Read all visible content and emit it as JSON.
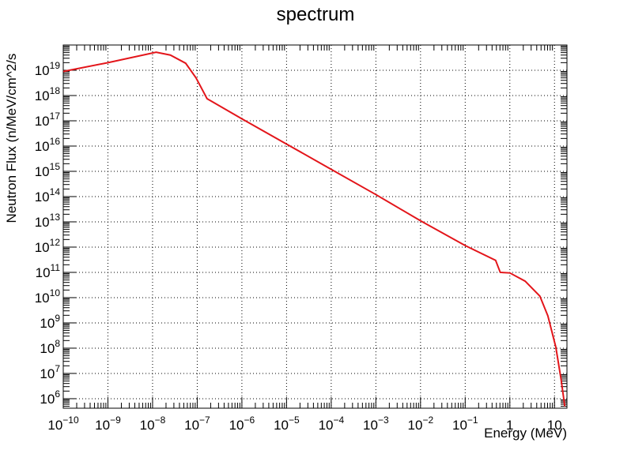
{
  "chart_data": {
    "type": "line",
    "title": "spectrum",
    "x_label": "Energy (MeV)",
    "y_label": "Neutron Flux (n/MeV/cm^2/s",
    "log_x": true,
    "log_y": true,
    "grid": true,
    "xlim": [
      1e-10,
      19
    ],
    "ylim": [
      420000,
      1e+20
    ],
    "xticks": [
      {
        "value": 1e-10,
        "label": "10^−10"
      },
      {
        "value": 1e-09,
        "label": "10^−9"
      },
      {
        "value": 1e-08,
        "label": "10^−8"
      },
      {
        "value": 1e-07,
        "label": "10^−7"
      },
      {
        "value": 1e-06,
        "label": "10^−6"
      },
      {
        "value": 1e-05,
        "label": "10^−5"
      },
      {
        "value": 0.0001,
        "label": "10^−4"
      },
      {
        "value": 0.001,
        "label": "10^−3"
      },
      {
        "value": 0.01,
        "label": "10^−2"
      },
      {
        "value": 0.1,
        "label": "10^−1"
      },
      1,
      10
    ],
    "yticks": [
      {
        "value": 1000000.0,
        "label": "10^6"
      },
      {
        "value": 10000000.0,
        "label": "10^7"
      },
      {
        "value": 100000000.0,
        "label": "10^8"
      },
      {
        "value": 1000000000.0,
        "label": "10^9"
      },
      {
        "value": 10000000000.0,
        "label": "10^10"
      },
      {
        "value": 100000000000.0,
        "label": "10^11"
      },
      {
        "value": 1000000000000.0,
        "label": "10^12"
      },
      {
        "value": 10000000000000.0,
        "label": "10^13"
      },
      {
        "value": 100000000000000.0,
        "label": "10^14"
      },
      {
        "value": 1000000000000000.0,
        "label": "10^15"
      },
      {
        "value": 1e+16,
        "label": "10^16"
      },
      {
        "value": 1e+17,
        "label": "10^17"
      },
      {
        "value": 1e+18,
        "label": "10^18"
      },
      {
        "value": 1e+19,
        "label": "10^19"
      }
    ],
    "x": [
      1e-10,
      1e-09,
      1.2e-08,
      2.5e-08,
      5.5e-08,
      9.4e-08,
      1.66e-07,
      1e-06,
      1e-05,
      0.0001,
      0.001,
      0.01,
      0.1,
      0.48,
      0.61,
      1,
      2.2,
      4.7,
      7.1,
      10.7,
      14,
      17
    ],
    "series": [
      {
        "color": "#e3151a",
        "values": [
          9e+18,
          2e+19,
          5.2e+19,
          4e+19,
          1.9e+19,
          5e+18,
          7.5e+17,
          1.2e+17,
          1.2e+16,
          1200000000000000.0,
          120000000000000.0,
          11000000000000.0,
          1150000000000.0,
          300000000000.0,
          100000000000.0,
          95000000000.0,
          45000000000.0,
          11500000000.0,
          1900000000.0,
          110000000.0,
          6000000.0,
          500000.0
        ]
      }
    ]
  }
}
